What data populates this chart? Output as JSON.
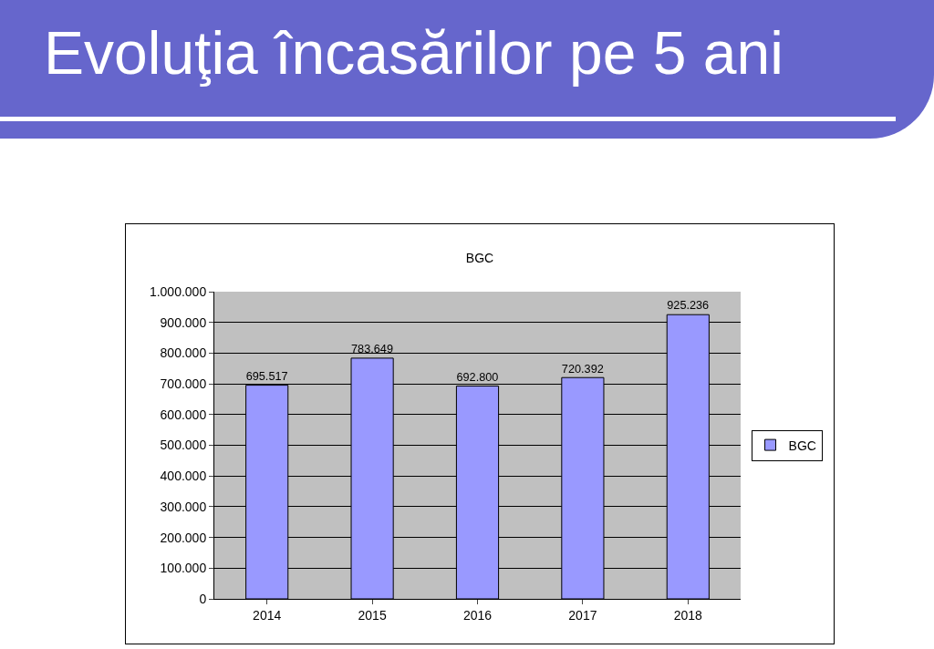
{
  "chart_data": {
    "type": "bar",
    "title": "Evoluţia încasărilor pe 5 ani",
    "subtitle": "BGC",
    "categories": [
      "2014",
      "2015",
      "2016",
      "2017",
      "2018"
    ],
    "series": [
      {
        "name": "BGC",
        "color": "#9999ff",
        "values": [
          695517,
          783649,
          692800,
          720392,
          925236
        ],
        "value_labels": [
          "695.517",
          "783.649",
          "692.800",
          "720.392",
          "925.236"
        ]
      }
    ],
    "ylim": [
      0,
      1000000
    ],
    "yticks": [
      {
        "value": 0,
        "label": "0"
      },
      {
        "value": 100000,
        "label": "100.000"
      },
      {
        "value": 200000,
        "label": "200.000"
      },
      {
        "value": 300000,
        "label": "300.000"
      },
      {
        "value": 400000,
        "label": "400.000"
      },
      {
        "value": 500000,
        "label": "500.000"
      },
      {
        "value": 600000,
        "label": "600.000"
      },
      {
        "value": 700000,
        "label": "700.000"
      },
      {
        "value": 800000,
        "label": "800.000"
      },
      {
        "value": 900000,
        "label": "900.000"
      },
      {
        "value": 1000000,
        "label": "1.000.000"
      }
    ],
    "grid": "y",
    "legend": "right"
  }
}
